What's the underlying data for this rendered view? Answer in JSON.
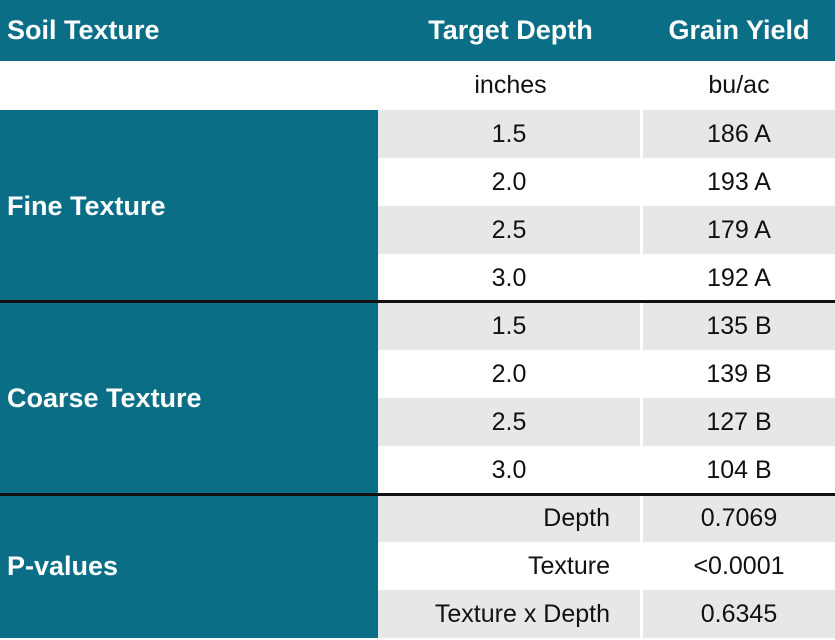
{
  "header": {
    "col1": "Soil Texture",
    "col2": "Target Depth",
    "col3": "Grain Yield"
  },
  "units": {
    "col2": "inches",
    "col3": "bu/ac"
  },
  "groups": {
    "fine": {
      "label": "Fine Texture",
      "rows": [
        {
          "depth": "1.5",
          "yield": "186 A"
        },
        {
          "depth": "2.0",
          "yield": "193 A"
        },
        {
          "depth": "2.5",
          "yield": "179 A"
        },
        {
          "depth": "3.0",
          "yield": "192 A"
        }
      ]
    },
    "coarse": {
      "label": "Coarse Texture",
      "rows": [
        {
          "depth": "1.5",
          "yield": "135 B"
        },
        {
          "depth": "2.0",
          "yield": "139 B"
        },
        {
          "depth": "2.5",
          "yield": "127 B"
        },
        {
          "depth": "3.0",
          "yield": "104 B"
        }
      ]
    },
    "pvalues": {
      "label": "P-values",
      "rows": [
        {
          "effect": "Depth",
          "value": "0.7069"
        },
        {
          "effect": "Texture",
          "value": "<0.0001"
        },
        {
          "effect": "Texture x Depth",
          "value": "0.6345"
        }
      ]
    }
  },
  "colors": {
    "header_bg": "#0a6e87",
    "row_shade": "#e6e7e9",
    "divider": "#111111"
  }
}
